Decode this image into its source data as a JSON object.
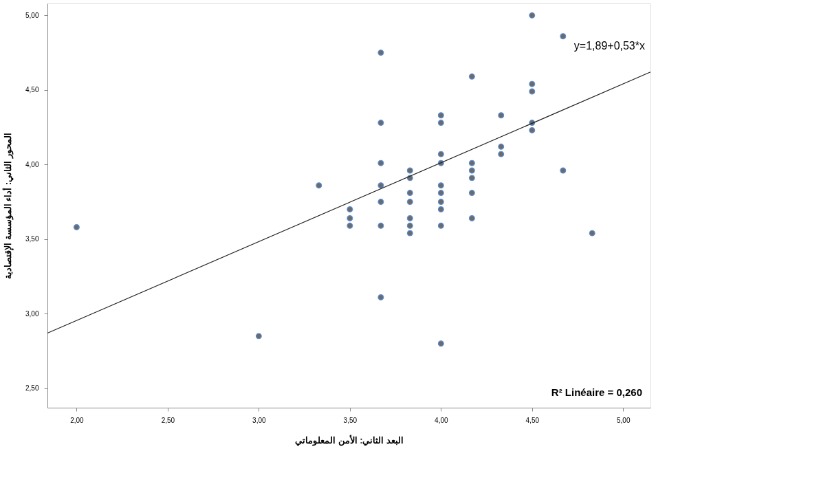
{
  "chart_data": {
    "type": "scatter",
    "xlabel": "البعد الثاني: الأمن المعلوماتي",
    "ylabel": "المحور الثاني: أداء المؤسسة الإقتصادية",
    "xlim": [
      1.84,
      5.15
    ],
    "ylim": [
      2.37,
      5.08
    ],
    "xticks": [
      {
        "value": 2,
        "label": "2,00"
      },
      {
        "value": 2.5,
        "label": "2,50"
      },
      {
        "value": 3,
        "label": "3,00"
      },
      {
        "value": 3.5,
        "label": "3,50"
      },
      {
        "value": 4,
        "label": "4,00"
      },
      {
        "value": 4.5,
        "label": "4,50"
      },
      {
        "value": 5,
        "label": "5,00"
      }
    ],
    "yticks": [
      {
        "value": 2.5,
        "label": "2,50"
      },
      {
        "value": 3,
        "label": "3,00"
      },
      {
        "value": 3.5,
        "label": "3,50"
      },
      {
        "value": 4,
        "label": "4,00"
      },
      {
        "value": 4.5,
        "label": "4,50"
      },
      {
        "value": 5,
        "label": "5,00"
      }
    ],
    "grid": false,
    "series": [
      {
        "type": "scatter",
        "marker": "circle",
        "color": "#6b6b6b",
        "x": [
          2.0,
          3.0,
          3.33,
          3.5,
          3.5,
          3.5,
          3.67,
          3.67,
          3.67,
          3.67,
          3.67,
          3.67,
          3.67,
          3.83,
          3.83,
          3.83,
          3.83,
          3.83,
          3.83,
          3.83,
          4.0,
          4.0,
          4.0,
          4.0,
          4.0,
          4.0,
          4.0,
          4.0,
          4.0,
          4.0,
          4.17,
          4.17,
          4.17,
          4.17,
          4.17,
          4.17,
          4.33,
          4.33,
          4.33,
          4.5,
          4.5,
          4.5,
          4.5,
          4.5,
          4.67,
          4.67,
          4.83
        ],
        "values": [
          3.58,
          2.85,
          3.86,
          3.7,
          3.64,
          3.59,
          4.75,
          4.28,
          4.01,
          3.86,
          3.75,
          3.59,
          3.11,
          3.96,
          3.91,
          3.81,
          3.75,
          3.64,
          3.59,
          3.54,
          4.33,
          4.28,
          4.07,
          4.01,
          3.86,
          3.81,
          3.75,
          3.7,
          3.59,
          2.8,
          4.59,
          4.01,
          3.96,
          3.91,
          3.81,
          3.64,
          4.33,
          4.12,
          4.07,
          5.0,
          4.54,
          4.49,
          4.28,
          4.23,
          4.86,
          3.96,
          3.54
        ]
      },
      {
        "type": "line",
        "color": "#222222",
        "x": [
          1.84,
          5.15
        ],
        "values": [
          2.87,
          4.62
        ]
      }
    ],
    "annotations": [
      "y=1,89+0,53*x",
      "R² Linéaire = 0,260"
    ]
  }
}
